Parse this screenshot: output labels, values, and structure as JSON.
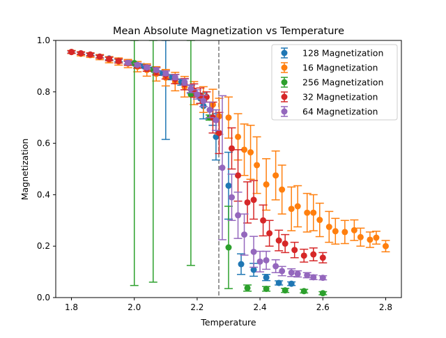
{
  "chart_data": {
    "type": "scatter",
    "title": "Mean Absolute Magnetization vs Temperature",
    "xlabel": "Temperature",
    "ylabel": "Magnetization",
    "xlim": [
      1.75,
      2.85
    ],
    "ylim": [
      0.0,
      1.0
    ],
    "xticks": [
      1.8,
      2.0,
      2.2,
      2.4,
      2.6,
      2.8
    ],
    "xtick_labels": [
      "1.8",
      "2.0",
      "2.2",
      "2.4",
      "2.6",
      "2.8"
    ],
    "yticks": [
      0.0,
      0.2,
      0.4,
      0.6,
      0.8,
      1.0
    ],
    "ytick_labels": [
      "0.0",
      "0.2",
      "0.4",
      "0.6",
      "0.8",
      "1.0"
    ],
    "grid": false,
    "legend_position": "top-right",
    "vline_x": 2.269,
    "vline_color": "#808080",
    "vline_style": "dashed",
    "series": [
      {
        "name": "128 Magnetization",
        "color": "#1f77b4",
        "points": [
          {
            "x": 1.8,
            "y": 0.955,
            "err": 0.004
          },
          {
            "x": 1.83,
            "y": 0.95,
            "err": 0.004
          },
          {
            "x": 1.86,
            "y": 0.945,
            "err": 0.004
          },
          {
            "x": 1.89,
            "y": 0.937,
            "err": 0.005
          },
          {
            "x": 1.92,
            "y": 0.93,
            "err": 0.005
          },
          {
            "x": 1.95,
            "y": 0.922,
            "err": 0.005
          },
          {
            "x": 1.98,
            "y": 0.914,
            "err": 0.006
          },
          {
            "x": 2.0,
            "y": 0.91,
            "err": 0.006
          },
          {
            "x": 2.03,
            "y": 0.9,
            "err": 0.007
          },
          {
            "x": 2.06,
            "y": 0.888,
            "err": 0.008
          },
          {
            "x": 2.09,
            "y": 0.873,
            "err": 0.009
          },
          {
            "x": 2.1,
            "y": 0.87,
            "err": 0.255
          },
          {
            "x": 2.12,
            "y": 0.857,
            "err": 0.01
          },
          {
            "x": 2.15,
            "y": 0.838,
            "err": 0.012
          },
          {
            "x": 2.18,
            "y": 0.81,
            "err": 0.015
          },
          {
            "x": 2.21,
            "y": 0.775,
            "err": 0.02
          },
          {
            "x": 2.22,
            "y": 0.745,
            "err": 0.05
          },
          {
            "x": 2.25,
            "y": 0.7,
            "err": 0.03
          },
          {
            "x": 2.26,
            "y": 0.625,
            "err": 0.09
          },
          {
            "x": 2.3,
            "y": 0.435,
            "err": 0.13
          },
          {
            "x": 2.34,
            "y": 0.13,
            "err": 0.04
          },
          {
            "x": 2.38,
            "y": 0.108,
            "err": 0.025
          },
          {
            "x": 2.42,
            "y": 0.078,
            "err": 0.012
          },
          {
            "x": 2.46,
            "y": 0.057,
            "err": 0.008
          },
          {
            "x": 2.5,
            "y": 0.054,
            "err": 0.007
          }
        ]
      },
      {
        "name": "16 Magnetization",
        "color": "#ff7f0e",
        "points": [
          {
            "x": 1.8,
            "y": 0.955,
            "err": 0.006
          },
          {
            "x": 1.83,
            "y": 0.948,
            "err": 0.008
          },
          {
            "x": 1.86,
            "y": 0.943,
            "err": 0.009
          },
          {
            "x": 1.89,
            "y": 0.935,
            "err": 0.01
          },
          {
            "x": 1.92,
            "y": 0.925,
            "err": 0.012
          },
          {
            "x": 1.95,
            "y": 0.918,
            "err": 0.014
          },
          {
            "x": 1.98,
            "y": 0.91,
            "err": 0.016
          },
          {
            "x": 2.01,
            "y": 0.898,
            "err": 0.02
          },
          {
            "x": 2.04,
            "y": 0.885,
            "err": 0.024
          },
          {
            "x": 2.07,
            "y": 0.87,
            "err": 0.028
          },
          {
            "x": 2.1,
            "y": 0.855,
            "err": 0.032
          },
          {
            "x": 2.13,
            "y": 0.84,
            "err": 0.036
          },
          {
            "x": 2.16,
            "y": 0.82,
            "err": 0.04
          },
          {
            "x": 2.19,
            "y": 0.795,
            "err": 0.045
          },
          {
            "x": 2.22,
            "y": 0.77,
            "err": 0.05
          },
          {
            "x": 2.25,
            "y": 0.75,
            "err": 0.06
          },
          {
            "x": 2.27,
            "y": 0.705,
            "err": 0.07
          },
          {
            "x": 2.3,
            "y": 0.7,
            "err": 0.08
          },
          {
            "x": 2.33,
            "y": 0.625,
            "err": 0.09
          },
          {
            "x": 2.35,
            "y": 0.575,
            "err": 0.1
          },
          {
            "x": 2.37,
            "y": 0.565,
            "err": 0.105
          },
          {
            "x": 2.39,
            "y": 0.515,
            "err": 0.11
          },
          {
            "x": 2.42,
            "y": 0.44,
            "err": 0.1
          },
          {
            "x": 2.45,
            "y": 0.475,
            "err": 0.095
          },
          {
            "x": 2.47,
            "y": 0.42,
            "err": 0.095
          },
          {
            "x": 2.5,
            "y": 0.345,
            "err": 0.085
          },
          {
            "x": 2.52,
            "y": 0.355,
            "err": 0.08
          },
          {
            "x": 2.55,
            "y": 0.33,
            "err": 0.075
          },
          {
            "x": 2.57,
            "y": 0.33,
            "err": 0.07
          },
          {
            "x": 2.59,
            "y": 0.302,
            "err": 0.065
          },
          {
            "x": 2.62,
            "y": 0.275,
            "err": 0.06
          },
          {
            "x": 2.64,
            "y": 0.258,
            "err": 0.05
          },
          {
            "x": 2.67,
            "y": 0.255,
            "err": 0.045
          },
          {
            "x": 2.7,
            "y": 0.262,
            "err": 0.04
          },
          {
            "x": 2.72,
            "y": 0.235,
            "err": 0.035
          },
          {
            "x": 2.75,
            "y": 0.225,
            "err": 0.03
          },
          {
            "x": 2.77,
            "y": 0.233,
            "err": 0.025
          },
          {
            "x": 2.8,
            "y": 0.2,
            "err": 0.022
          }
        ]
      },
      {
        "name": "256 Magnetization",
        "color": "#2ca02c",
        "points": [
          {
            "x": 2.0,
            "y": 0.912,
            "err": 0.865
          },
          {
            "x": 2.06,
            "y": 0.885,
            "err": 0.825
          },
          {
            "x": 2.18,
            "y": 0.79,
            "err": 0.665
          },
          {
            "x": 2.24,
            "y": 0.7,
            "err": 0.01
          },
          {
            "x": 2.3,
            "y": 0.195,
            "err": 0.16
          },
          {
            "x": 2.36,
            "y": 0.037,
            "err": 0.012
          },
          {
            "x": 2.42,
            "y": 0.034,
            "err": 0.009
          },
          {
            "x": 2.48,
            "y": 0.028,
            "err": 0.008
          },
          {
            "x": 2.54,
            "y": 0.025,
            "err": 0.007
          },
          {
            "x": 2.6,
            "y": 0.017,
            "err": 0.006
          }
        ]
      },
      {
        "name": "32 Magnetization",
        "color": "#d62728",
        "points": [
          {
            "x": 1.8,
            "y": 0.955,
            "err": 0.005
          },
          {
            "x": 1.83,
            "y": 0.95,
            "err": 0.005
          },
          {
            "x": 1.86,
            "y": 0.945,
            "err": 0.006
          },
          {
            "x": 1.89,
            "y": 0.937,
            "err": 0.006
          },
          {
            "x": 1.92,
            "y": 0.928,
            "err": 0.007
          },
          {
            "x": 1.95,
            "y": 0.92,
            "err": 0.008
          },
          {
            "x": 1.98,
            "y": 0.912,
            "err": 0.009
          },
          {
            "x": 2.01,
            "y": 0.902,
            "err": 0.01
          },
          {
            "x": 2.04,
            "y": 0.892,
            "err": 0.012
          },
          {
            "x": 2.07,
            "y": 0.88,
            "err": 0.014
          },
          {
            "x": 2.1,
            "y": 0.866,
            "err": 0.016
          },
          {
            "x": 2.13,
            "y": 0.85,
            "err": 0.018
          },
          {
            "x": 2.16,
            "y": 0.83,
            "err": 0.022
          },
          {
            "x": 2.19,
            "y": 0.805,
            "err": 0.026
          },
          {
            "x": 2.21,
            "y": 0.785,
            "err": 0.03
          },
          {
            "x": 2.23,
            "y": 0.78,
            "err": 0.02
          },
          {
            "x": 2.25,
            "y": 0.7,
            "err": 0.06
          },
          {
            "x": 2.27,
            "y": 0.64,
            "err": 0.08
          },
          {
            "x": 2.31,
            "y": 0.58,
            "err": 0.08
          },
          {
            "x": 2.33,
            "y": 0.475,
            "err": 0.1
          },
          {
            "x": 2.36,
            "y": 0.37,
            "err": 0.08
          },
          {
            "x": 2.38,
            "y": 0.38,
            "err": 0.075
          },
          {
            "x": 2.41,
            "y": 0.3,
            "err": 0.06
          },
          {
            "x": 2.43,
            "y": 0.25,
            "err": 0.05
          },
          {
            "x": 2.46,
            "y": 0.222,
            "err": 0.04
          },
          {
            "x": 2.48,
            "y": 0.21,
            "err": 0.035
          },
          {
            "x": 2.51,
            "y": 0.185,
            "err": 0.03
          },
          {
            "x": 2.54,
            "y": 0.163,
            "err": 0.025
          },
          {
            "x": 2.57,
            "y": 0.168,
            "err": 0.025
          },
          {
            "x": 2.6,
            "y": 0.155,
            "err": 0.02
          }
        ]
      },
      {
        "name": "64 Magnetization",
        "color": "#9467bd",
        "points": [
          {
            "x": 1.98,
            "y": 0.913,
            "err": 0.005
          },
          {
            "x": 2.01,
            "y": 0.905,
            "err": 0.006
          },
          {
            "x": 2.04,
            "y": 0.895,
            "err": 0.007
          },
          {
            "x": 2.07,
            "y": 0.885,
            "err": 0.008
          },
          {
            "x": 2.1,
            "y": 0.872,
            "err": 0.009
          },
          {
            "x": 2.13,
            "y": 0.857,
            "err": 0.01
          },
          {
            "x": 2.16,
            "y": 0.838,
            "err": 0.012
          },
          {
            "x": 2.18,
            "y": 0.812,
            "err": 0.015
          },
          {
            "x": 2.2,
            "y": 0.79,
            "err": 0.018
          },
          {
            "x": 2.22,
            "y": 0.765,
            "err": 0.022
          },
          {
            "x": 2.24,
            "y": 0.73,
            "err": 0.03
          },
          {
            "x": 2.26,
            "y": 0.69,
            "err": 0.04
          },
          {
            "x": 2.28,
            "y": 0.505,
            "err": 0.28
          },
          {
            "x": 2.31,
            "y": 0.39,
            "err": 0.09
          },
          {
            "x": 2.33,
            "y": 0.32,
            "err": 0.09
          },
          {
            "x": 2.35,
            "y": 0.245,
            "err": 0.08
          },
          {
            "x": 2.38,
            "y": 0.178,
            "err": 0.06
          },
          {
            "x": 2.4,
            "y": 0.14,
            "err": 0.04
          },
          {
            "x": 2.42,
            "y": 0.145,
            "err": 0.035
          },
          {
            "x": 2.45,
            "y": 0.122,
            "err": 0.025
          },
          {
            "x": 2.47,
            "y": 0.103,
            "err": 0.018
          },
          {
            "x": 2.5,
            "y": 0.097,
            "err": 0.015
          },
          {
            "x": 2.52,
            "y": 0.092,
            "err": 0.012
          },
          {
            "x": 2.55,
            "y": 0.087,
            "err": 0.01
          },
          {
            "x": 2.57,
            "y": 0.079,
            "err": 0.009
          },
          {
            "x": 2.6,
            "y": 0.077,
            "err": 0.008
          }
        ]
      }
    ]
  }
}
